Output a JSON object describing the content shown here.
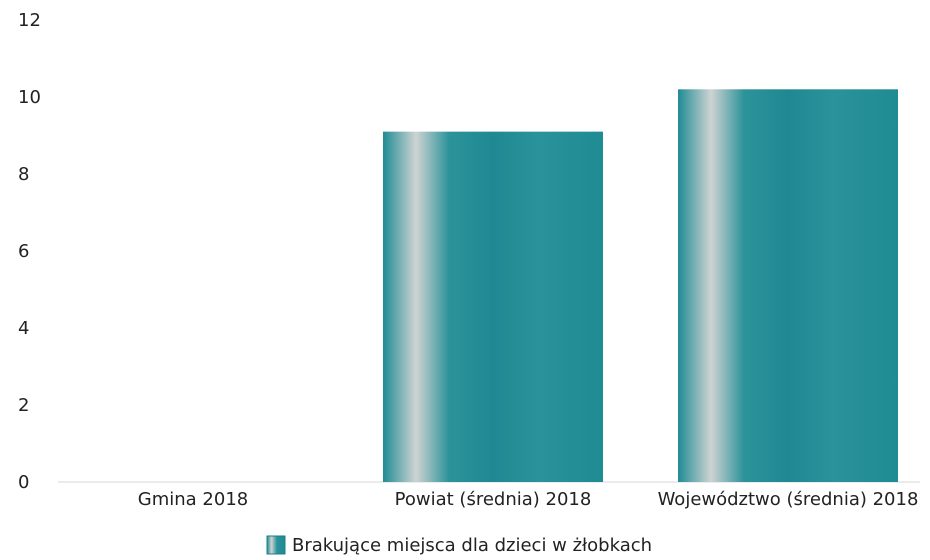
{
  "chart_data": {
    "type": "bar",
    "title": "",
    "xlabel": "",
    "ylabel": "",
    "categories": [
      "Gmina 2018",
      "Powiat (średnia) 2018",
      "Województwo (średnia) 2018"
    ],
    "series": [
      {
        "name": "Brakujące miejsca dla dzieci w żłobkach",
        "values": [
          0,
          9.1,
          10.2
        ],
        "color": "#1f8a94"
      }
    ],
    "yticks": [
      "0",
      "2",
      "4",
      "6",
      "8",
      "10",
      "12"
    ],
    "ylim": [
      0,
      12
    ],
    "grid": false,
    "legend_position": "bottom-center"
  }
}
